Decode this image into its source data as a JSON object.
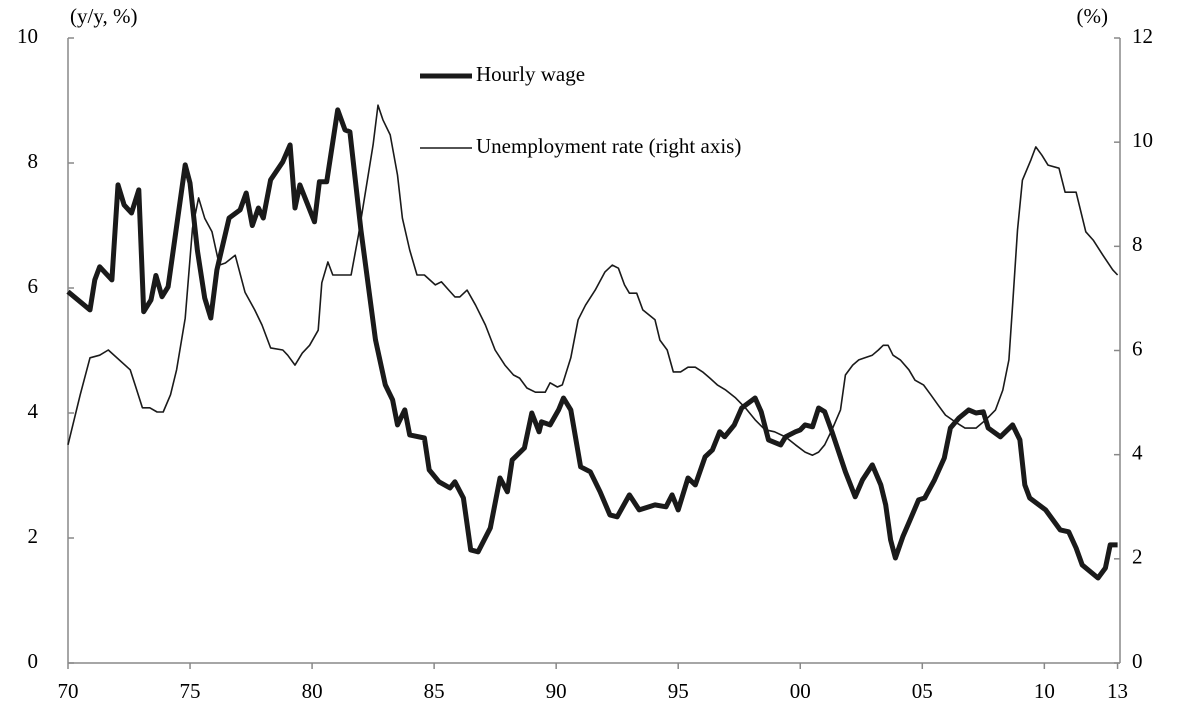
{
  "chart_data": {
    "type": "line",
    "y_label": "(y/y, %)",
    "y2_label": "(%)",
    "xlim": [
      1970,
      2013.1
    ],
    "xticks": [
      {
        "value": 1970,
        "label": "70"
      },
      {
        "value": 1975,
        "label": "75"
      },
      {
        "value": 1980,
        "label": "80"
      },
      {
        "value": 1985,
        "label": "85"
      },
      {
        "value": 1990,
        "label": "90"
      },
      {
        "value": 1995,
        "label": "95"
      },
      {
        "value": 2000,
        "label": "00"
      },
      {
        "value": 2005,
        "label": "05"
      },
      {
        "value": 2010,
        "label": "10"
      },
      {
        "value": 2013,
        "label": "13"
      }
    ],
    "ylim": [
      0,
      10
    ],
    "yticks": [
      0,
      2,
      4,
      6,
      8,
      10
    ],
    "y2lim": [
      0,
      12
    ],
    "y2ticks": [
      0,
      2,
      4,
      6,
      8,
      10,
      12
    ],
    "series": [
      {
        "name": "Hourly wage",
        "color": "#1a1a1a",
        "width": 5,
        "x": [
          1970.0,
          1970.9,
          1971.1,
          1971.3,
          1971.8,
          1972.05,
          1972.3,
          1972.6,
          1972.9,
          1973.1,
          1973.4,
          1973.6,
          1973.85,
          1974.1,
          1974.4,
          1974.8,
          1975.0,
          1975.3,
          1975.6,
          1975.85,
          1976.1,
          1976.6,
          1977.05,
          1977.3,
          1977.55,
          1977.8,
          1978.0,
          1978.3,
          1978.8,
          1979.1,
          1979.3,
          1979.5,
          1980.1,
          1980.3,
          1980.6,
          1981.05,
          1981.35,
          1981.55,
          1982.0,
          1982.6,
          1983.0,
          1983.3,
          1983.5,
          1983.8,
          1984.0,
          1984.6,
          1984.8,
          1985.2,
          1985.65,
          1985.85,
          1986.2,
          1986.5,
          1986.8,
          1987.3,
          1987.7,
          1988.0,
          1988.2,
          1988.7,
          1989.0,
          1989.3,
          1989.4,
          1989.75,
          1990.1,
          1990.3,
          1990.6,
          1991.0,
          1991.4,
          1991.8,
          1992.2,
          1992.5,
          1993.0,
          1993.4,
          1994.05,
          1994.5,
          1994.75,
          1995.0,
          1995.4,
          1995.7,
          1996.1,
          1996.4,
          1996.7,
          1996.9,
          1997.3,
          1997.6,
          1998.15,
          1998.4,
          1998.7,
          1999.2,
          1999.4,
          1999.8,
          2000.0,
          2000.2,
          2000.5,
          2000.75,
          2001.0,
          2001.3,
          2001.85,
          2002.25,
          2002.55,
          2002.95,
          2003.3,
          2003.5,
          2003.7,
          2003.9,
          2004.2,
          2004.5,
          2004.85,
          2005.1,
          2005.5,
          2005.9,
          2006.15,
          2006.5,
          2006.9,
          2007.2,
          2007.5,
          2007.7,
          2008.2,
          2008.7,
          2009.0,
          2009.2,
          2009.4,
          2010.05,
          2010.65,
          2011.0,
          2011.3,
          2011.55,
          2012.2,
          2012.5,
          2012.7,
          2013.0
        ],
        "values": [
          5.94,
          5.65,
          6.13,
          6.34,
          6.13,
          7.65,
          7.33,
          7.2,
          7.57,
          5.62,
          5.81,
          6.2,
          5.86,
          6.02,
          6.85,
          7.97,
          7.68,
          6.6,
          5.84,
          5.52,
          6.29,
          7.12,
          7.25,
          7.52,
          7.0,
          7.28,
          7.12,
          7.73,
          8.02,
          8.29,
          7.28,
          7.65,
          7.06,
          7.7,
          7.7,
          8.85,
          8.53,
          8.5,
          6.93,
          5.17,
          4.45,
          4.21,
          3.81,
          4.05,
          3.65,
          3.6,
          3.09,
          2.9,
          2.8,
          2.9,
          2.64,
          1.81,
          1.78,
          2.16,
          2.96,
          2.74,
          3.25,
          3.44,
          4.0,
          3.7,
          3.86,
          3.81,
          4.05,
          4.24,
          4.05,
          3.14,
          3.06,
          2.74,
          2.37,
          2.34,
          2.69,
          2.45,
          2.53,
          2.5,
          2.69,
          2.45,
          2.96,
          2.85,
          3.3,
          3.41,
          3.7,
          3.62,
          3.81,
          4.08,
          4.24,
          4.02,
          3.57,
          3.49,
          3.62,
          3.7,
          3.73,
          3.81,
          3.78,
          4.08,
          4.02,
          3.7,
          3.06,
          2.66,
          2.93,
          3.17,
          2.85,
          2.53,
          1.97,
          1.68,
          2.02,
          2.29,
          2.61,
          2.64,
          2.93,
          3.28,
          3.76,
          3.92,
          4.05,
          4.0,
          4.02,
          3.76,
          3.62,
          3.81,
          3.57,
          2.85,
          2.64,
          2.45,
          2.13,
          2.1,
          1.84,
          1.57,
          1.36,
          1.52,
          1.89,
          1.89
        ]
      },
      {
        "name": "Unemployment rate (right axis)",
        "color": "#1a1a1a",
        "width": 1.6,
        "axis": "y2",
        "x": [
          1970.0,
          1970.5,
          1970.9,
          1971.3,
          1971.65,
          1972.55,
          1972.75,
          1973.05,
          1973.35,
          1973.65,
          1973.9,
          1974.2,
          1974.45,
          1974.8,
          1975.1,
          1975.35,
          1975.6,
          1975.9,
          1976.2,
          1976.45,
          1976.85,
          1977.25,
          1977.65,
          1977.95,
          1978.3,
          1978.8,
          1979.0,
          1979.3,
          1979.6,
          1979.9,
          1980.25,
          1980.4,
          1980.65,
          1980.85,
          1981.35,
          1981.6,
          1981.9,
          1982.3,
          1982.5,
          1982.7,
          1982.9,
          1983.2,
          1983.5,
          1983.7,
          1984.0,
          1984.3,
          1984.6,
          1985.05,
          1985.3,
          1985.6,
          1985.85,
          1986.05,
          1986.35,
          1986.7,
          1987.1,
          1987.5,
          1987.9,
          1988.25,
          1988.5,
          1988.8,
          1989.15,
          1989.55,
          1989.75,
          1990.05,
          1990.25,
          1990.6,
          1990.9,
          1991.2,
          1991.6,
          1992.0,
          1992.3,
          1992.55,
          1992.8,
          1993.0,
          1993.3,
          1993.55,
          1994.05,
          1994.25,
          1994.55,
          1994.8,
          1995.1,
          1995.4,
          1995.7,
          1996.0,
          1996.3,
          1996.6,
          1996.95,
          1997.35,
          1997.75,
          1998.15,
          1998.55,
          1998.95,
          1999.4,
          1999.8,
          2000.2,
          2000.5,
          2000.75,
          2001.0,
          2001.3,
          2001.65,
          2001.85,
          2002.15,
          2002.4,
          2002.65,
          2002.95,
          2003.2,
          2003.4,
          2003.6,
          2003.8,
          2004.1,
          2004.45,
          2004.7,
          2005.05,
          2005.35,
          2005.65,
          2005.95,
          2006.35,
          2006.75,
          2007.2,
          2007.6,
          2008.0,
          2008.3,
          2008.55,
          2008.7,
          2008.9,
          2009.1,
          2009.45,
          2009.65,
          2009.9,
          2010.15,
          2010.6,
          2010.85,
          2011.3,
          2011.7,
          2012.0,
          2012.4,
          2012.8,
          2013.0
        ],
        "values": [
          4.19,
          5.15,
          5.86,
          5.91,
          6.01,
          5.63,
          5.34,
          4.9,
          4.9,
          4.82,
          4.82,
          5.15,
          5.63,
          6.62,
          8.35,
          8.93,
          8.54,
          8.28,
          7.64,
          7.68,
          7.83,
          7.12,
          6.78,
          6.49,
          6.05,
          6.01,
          5.91,
          5.72,
          5.95,
          6.1,
          6.39,
          7.3,
          7.7,
          7.45,
          7.45,
          7.45,
          8.22,
          9.37,
          9.95,
          10.71,
          10.43,
          10.14,
          9.37,
          8.54,
          7.93,
          7.45,
          7.45,
          7.26,
          7.32,
          7.16,
          7.03,
          7.03,
          7.16,
          6.87,
          6.49,
          6.01,
          5.72,
          5.53,
          5.47,
          5.28,
          5.2,
          5.2,
          5.38,
          5.3,
          5.34,
          5.86,
          6.59,
          6.87,
          7.16,
          7.51,
          7.64,
          7.58,
          7.26,
          7.1,
          7.1,
          6.78,
          6.59,
          6.2,
          6.01,
          5.59,
          5.59,
          5.68,
          5.68,
          5.59,
          5.47,
          5.34,
          5.24,
          5.09,
          4.9,
          4.67,
          4.48,
          4.44,
          4.34,
          4.19,
          4.05,
          3.99,
          4.05,
          4.19,
          4.48,
          4.86,
          5.53,
          5.72,
          5.82,
          5.86,
          5.91,
          6.01,
          6.1,
          6.1,
          5.91,
          5.82,
          5.63,
          5.43,
          5.34,
          5.15,
          4.95,
          4.76,
          4.63,
          4.51,
          4.51,
          4.67,
          4.86,
          5.24,
          5.82,
          6.87,
          8.31,
          9.27,
          9.66,
          9.91,
          9.75,
          9.56,
          9.5,
          9.04,
          9.04,
          8.28,
          8.12,
          7.83,
          7.55,
          7.45
        ]
      }
    ]
  }
}
